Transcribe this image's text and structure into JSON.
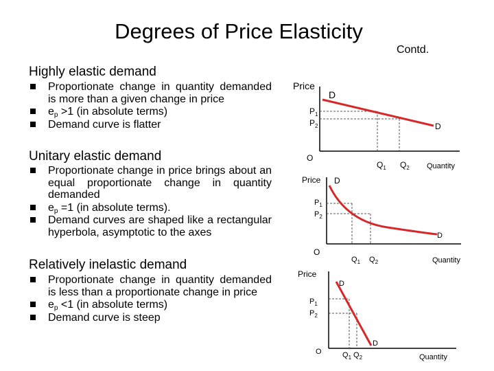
{
  "title": "Degrees of Price Elasticity",
  "contd": "Contd.",
  "sections": [
    {
      "heading": "Highly elastic demand",
      "bullets": [
        {
          "text": "Proportionate change in quantity demanded is more than a given change in price"
        },
        {
          "pre": "e",
          "sub": "p",
          "post": " >1 (in absolute terms)"
        },
        {
          "text": "Demand curve is flatter"
        }
      ]
    },
    {
      "heading": "Unitary elastic demand",
      "bullets": [
        {
          "text": "Proportionate change in price brings about an equal proportionate change in quantity demanded"
        },
        {
          "pre": "e",
          "sub": "p",
          "post": " =1 (in absolute terms)."
        },
        {
          "text": "Demand curves are shaped like a rectangular hyperbola, asymptotic to the axes"
        }
      ]
    },
    {
      "heading": "Relatively inelastic demand",
      "bullets": [
        {
          "text": "Proportionate change in quantity demanded is less than a proportionate change in price"
        },
        {
          "pre": "e",
          "sub": "p",
          "post": " <1 (in absolute terms)"
        },
        {
          "text": "Demand curve is steep"
        }
      ]
    }
  ],
  "diagrams": {
    "price_label": "Price",
    "quantity_label": "Quantity",
    "origin_label": "O",
    "curve_label": "D",
    "p_letter": "P",
    "q_letter": "Q",
    "sub_1": "1",
    "sub_2": "2",
    "curve_color": "#d62828"
  }
}
